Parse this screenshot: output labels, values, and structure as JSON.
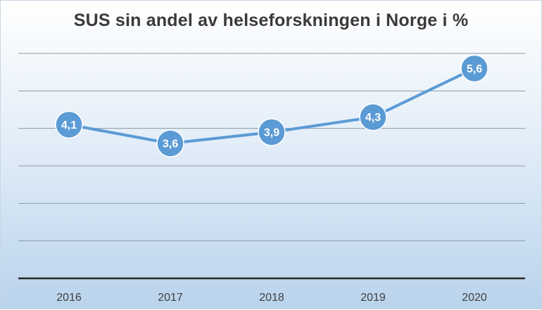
{
  "chart_data": {
    "type": "line",
    "title": "SUS sin andel av helseforskningen i Norge i %",
    "categories": [
      "2016",
      "2017",
      "2018",
      "2019",
      "2020"
    ],
    "values": [
      4.1,
      3.6,
      3.9,
      4.3,
      5.6
    ],
    "value_labels": [
      "4,1",
      "3,6",
      "3,9",
      "4,3",
      "5,6"
    ],
    "ylim": [
      0,
      6
    ],
    "grid_step": 1,
    "grid": true,
    "legend": "none",
    "colors": {
      "line": "#5b9bd5",
      "marker": "#5b9bd5",
      "marker_text": "#ffffff",
      "grid": "#8c9aa6",
      "axis": "#262626"
    }
  }
}
